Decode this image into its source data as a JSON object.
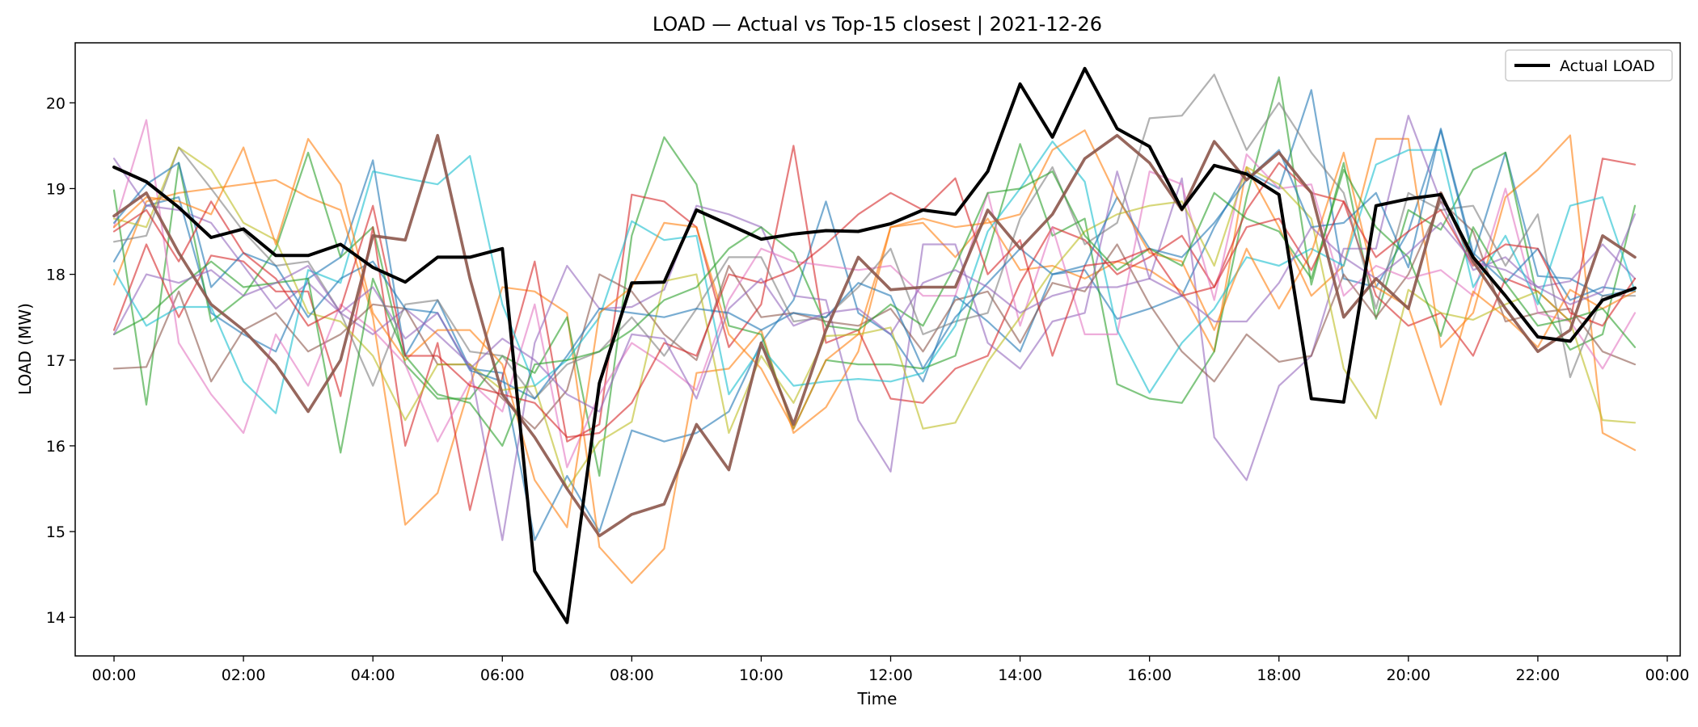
{
  "chart_data": {
    "type": "line",
    "title": "LOAD — Actual vs Top-15 closest | 2021-12-26",
    "xlabel": "Time",
    "ylabel": "LOAD (MW)",
    "xlim": [
      -0.6,
      24.2
    ],
    "ylim": [
      13.55,
      20.7
    ],
    "xticks": [
      0,
      2,
      4,
      6,
      8,
      10,
      12,
      14,
      16,
      18,
      20,
      22,
      24
    ],
    "xtick_labels": [
      "00:00",
      "02:00",
      "04:00",
      "06:00",
      "08:00",
      "10:00",
      "12:00",
      "14:00",
      "16:00",
      "18:00",
      "20:00",
      "22:00",
      "00:00"
    ],
    "yticks": [
      14,
      15,
      16,
      17,
      18,
      19,
      20
    ],
    "ytick_labels": [
      "14",
      "15",
      "16",
      "17",
      "18",
      "19",
      "20"
    ],
    "grid": false,
    "legend": {
      "position": "top-right",
      "entries": [
        "Actual LOAD"
      ]
    },
    "x": [
      0,
      0.5,
      1,
      1.5,
      2,
      2.5,
      3,
      3.5,
      4,
      4.5,
      5,
      5.5,
      6,
      6.5,
      7,
      7.5,
      8,
      8.5,
      9,
      9.5,
      10,
      10.5,
      11,
      11.5,
      12,
      12.5,
      13,
      13.5,
      14,
      14.5,
      15,
      15.5,
      16,
      16.5,
      17,
      17.5,
      18,
      18.5,
      19,
      19.5,
      20,
      20.5,
      21,
      21.5,
      22,
      22.5,
      23,
      23.5
    ],
    "actual": {
      "name": "Actual LOAD",
      "color": "#000000",
      "values": [
        19.25,
        19.08,
        18.78,
        18.43,
        18.53,
        18.22,
        18.22,
        18.35,
        18.08,
        17.91,
        18.2,
        18.2,
        18.3,
        14.54,
        13.94,
        16.73,
        17.9,
        17.91,
        18.75,
        18.58,
        18.41,
        18.47,
        18.51,
        18.5,
        18.59,
        18.75,
        18.7,
        19.2,
        20.22,
        19.6,
        20.4,
        19.7,
        19.49,
        18.76,
        19.27,
        19.17,
        18.93,
        16.55,
        16.51,
        18.8,
        18.88,
        18.93,
        18.2,
        17.75,
        17.27,
        17.22,
        17.7,
        17.84
      ]
    },
    "series": [
      {
        "color": "#1f77b4",
        "values": [
          18.15,
          18.8,
          18.9,
          17.55,
          17.3,
          17.1,
          17.95,
          18.2,
          19.33,
          17.05,
          17.7,
          16.9,
          16.85,
          14.9,
          15.65,
          15.0,
          16.18,
          16.05,
          16.15,
          16.4,
          17.2,
          17.7,
          18.85,
          17.55,
          17.3,
          16.75,
          17.75,
          17.45,
          17.1,
          18.0,
          18.05,
          17.48,
          17.6,
          17.75,
          18.55,
          19.2,
          19.0,
          20.15,
          17.95,
          17.85,
          18.5,
          19.68,
          18.2,
          19.42,
          17.98,
          17.95,
          17.75,
          17.82
        ]
      },
      {
        "color": "#ff7f0e",
        "values": [
          17.88,
          18.85,
          18.95,
          19.0,
          19.05,
          19.1,
          18.9,
          18.75,
          17.5,
          15.08,
          15.45,
          16.7,
          17.85,
          17.8,
          17.55,
          14.82,
          14.4,
          14.8,
          16.85,
          16.9,
          17.35,
          16.15,
          16.45,
          17.1,
          18.55,
          18.6,
          18.2,
          18.65,
          18.05,
          18.1,
          17.95,
          18.15,
          18.05,
          17.8,
          17.1,
          19.25,
          18.55,
          17.75,
          18.1,
          19.58,
          19.58,
          17.15,
          17.55,
          18.9,
          19.22,
          19.62,
          16.15,
          15.95
        ]
      },
      {
        "color": "#2ca02c",
        "values": [
          18.98,
          16.48,
          19.3,
          17.45,
          17.75,
          18.3,
          19.42,
          18.2,
          18.55,
          16.95,
          16.55,
          16.55,
          17.05,
          16.85,
          17.5,
          15.65,
          18.45,
          19.6,
          19.05,
          17.4,
          17.3,
          16.2,
          17.0,
          16.95,
          16.95,
          16.9,
          17.05,
          18.25,
          19.52,
          18.45,
          18.65,
          16.72,
          16.55,
          16.5,
          17.1,
          18.9,
          20.3,
          17.88,
          19.3,
          17.48,
          18.75,
          18.52,
          19.22,
          19.42,
          17.7,
          17.12,
          17.3,
          18.8
        ]
      },
      {
        "color": "#d62728",
        "values": [
          17.35,
          18.35,
          17.5,
          18.22,
          18.15,
          17.8,
          17.8,
          16.58,
          18.55,
          16.0,
          17.2,
          15.25,
          16.8,
          18.15,
          16.05,
          16.25,
          18.93,
          18.85,
          18.55,
          17.15,
          17.65,
          19.5,
          17.2,
          17.35,
          16.55,
          16.5,
          16.9,
          17.05,
          17.9,
          18.55,
          18.4,
          18.0,
          18.2,
          18.45,
          17.85,
          18.75,
          19.3,
          18.95,
          18.85,
          17.75,
          17.4,
          17.55,
          17.05,
          17.95,
          17.8,
          17.45,
          19.35,
          19.28
        ]
      },
      {
        "color": "#9467bd",
        "values": [
          19.35,
          18.8,
          18.75,
          18.6,
          18.1,
          17.6,
          17.9,
          17.55,
          17.3,
          17.6,
          17.3,
          16.95,
          14.9,
          17.2,
          18.1,
          17.6,
          17.62,
          17.82,
          18.8,
          18.7,
          18.55,
          17.75,
          17.7,
          16.3,
          15.7,
          18.35,
          18.35,
          17.2,
          16.9,
          17.45,
          17.55,
          19.2,
          17.95,
          19.12,
          16.1,
          15.6,
          16.7,
          17.05,
          18.3,
          18.3,
          19.85,
          18.85,
          18.05,
          18.2,
          17.85,
          17.92,
          18.35,
          17.95
        ]
      },
      {
        "color": "#8c564b",
        "values": [
          16.9,
          16.92,
          17.8,
          16.75,
          17.35,
          17.55,
          17.1,
          17.3,
          17.65,
          17.6,
          16.95,
          16.95,
          16.55,
          16.2,
          16.65,
          18.0,
          17.8,
          17.3,
          17.0,
          18.1,
          17.5,
          17.55,
          17.45,
          17.4,
          17.6,
          17.1,
          17.7,
          17.8,
          17.2,
          17.9,
          17.8,
          18.35,
          17.65,
          17.1,
          16.75,
          17.3,
          16.98,
          17.05,
          18.0,
          17.5,
          18.0,
          18.85,
          18.5,
          17.45,
          17.55,
          17.6,
          17.1,
          16.95
        ]
      },
      {
        "color": "#e377c2",
        "values": [
          18.55,
          19.8,
          17.2,
          16.6,
          16.15,
          17.3,
          16.7,
          17.65,
          17.35,
          16.95,
          16.05,
          16.75,
          16.4,
          17.65,
          15.75,
          16.6,
          17.2,
          16.95,
          16.65,
          17.7,
          18.3,
          18.15,
          18.1,
          18.05,
          18.1,
          17.75,
          17.75,
          18.95,
          17.4,
          18.55,
          17.3,
          17.3,
          19.2,
          19.05,
          17.7,
          19.4,
          19.0,
          19.05,
          17.75,
          18.1,
          17.95,
          18.05,
          17.75,
          19.0,
          17.55,
          17.45,
          16.9,
          17.55
        ]
      },
      {
        "color": "#7f7f7f",
        "values": [
          18.38,
          18.45,
          19.48,
          19.0,
          18.5,
          18.1,
          18.15,
          17.55,
          16.7,
          17.65,
          17.7,
          17.1,
          17.05,
          16.55,
          16.95,
          17.1,
          17.5,
          17.05,
          17.6,
          18.2,
          18.2,
          17.45,
          17.5,
          17.85,
          18.3,
          17.3,
          17.45,
          17.55,
          18.65,
          19.25,
          18.35,
          18.6,
          19.82,
          19.85,
          20.33,
          19.45,
          20.0,
          19.42,
          18.95,
          17.6,
          18.95,
          18.75,
          18.8,
          18.1,
          18.7,
          16.8,
          17.75,
          17.75
        ]
      },
      {
        "color": "#bcbd22",
        "values": [
          18.65,
          18.55,
          19.48,
          19.22,
          18.6,
          18.4,
          17.55,
          17.45,
          17.05,
          16.3,
          16.95,
          16.95,
          16.65,
          16.7,
          15.5,
          16.05,
          16.28,
          17.92,
          18.0,
          16.15,
          17.05,
          16.5,
          17.28,
          17.3,
          17.38,
          16.2,
          16.27,
          16.98,
          17.5,
          18.05,
          18.5,
          18.7,
          18.8,
          18.85,
          18.1,
          19.25,
          19.05,
          18.65,
          16.9,
          16.32,
          17.82,
          17.55,
          17.47,
          17.65,
          17.8,
          17.45,
          16.3,
          16.27
        ]
      },
      {
        "color": "#17becf",
        "values": [
          18.05,
          17.4,
          17.62,
          17.62,
          16.75,
          16.38,
          18.05,
          17.9,
          19.2,
          19.12,
          19.05,
          19.38,
          17.65,
          16.7,
          17.0,
          17.5,
          18.62,
          18.4,
          18.45,
          16.6,
          17.15,
          16.7,
          16.75,
          16.78,
          16.75,
          16.85,
          17.4,
          18.5,
          19.0,
          19.55,
          19.08,
          17.35,
          16.62,
          17.2,
          17.6,
          18.2,
          18.1,
          18.3,
          18.1,
          19.28,
          19.45,
          19.45,
          17.85,
          18.45,
          17.65,
          18.8,
          18.9,
          17.8
        ]
      },
      {
        "color": "#1f77b4",
        "values": [
          18.6,
          19.05,
          19.3,
          17.85,
          18.25,
          18.1,
          17.5,
          17.95,
          18.15,
          17.6,
          17.55,
          16.88,
          16.75,
          16.55,
          17.05,
          17.6,
          17.55,
          17.5,
          17.6,
          17.55,
          17.35,
          17.55,
          17.5,
          17.9,
          17.75,
          16.9,
          17.5,
          17.9,
          18.3,
          18.0,
          18.1,
          18.9,
          18.3,
          18.2,
          18.6,
          19.1,
          19.45,
          18.55,
          18.6,
          18.95,
          18.08,
          19.7,
          18.25,
          17.9,
          18.3,
          17.7,
          17.85,
          17.8
        ]
      },
      {
        "color": "#ff7f0e",
        "values": [
          18.55,
          18.9,
          18.85,
          18.7,
          19.48,
          18.35,
          19.58,
          19.05,
          17.55,
          17.0,
          17.35,
          17.35,
          16.95,
          15.6,
          15.05,
          17.55,
          17.85,
          18.6,
          18.55,
          17.3,
          16.9,
          16.2,
          17.0,
          17.3,
          18.55,
          18.65,
          18.55,
          18.6,
          18.7,
          19.45,
          19.68,
          18.9,
          18.25,
          18.15,
          17.35,
          18.3,
          17.6,
          18.25,
          19.42,
          17.85,
          17.62,
          16.48,
          17.8,
          17.5,
          17.15,
          17.82,
          17.6,
          17.8
        ]
      },
      {
        "color": "#2ca02c",
        "values": [
          17.3,
          17.5,
          17.85,
          18.15,
          17.85,
          17.9,
          17.95,
          15.92,
          17.95,
          17.05,
          16.6,
          16.5,
          16.0,
          16.95,
          17.0,
          17.1,
          17.35,
          17.7,
          17.85,
          18.3,
          18.55,
          18.25,
          17.4,
          17.35,
          17.65,
          17.4,
          18.1,
          18.95,
          19.0,
          19.2,
          18.45,
          18.05,
          18.3,
          18.1,
          18.95,
          18.65,
          18.5,
          17.95,
          19.22,
          18.55,
          18.2,
          17.28,
          18.55,
          17.9,
          17.4,
          17.48,
          17.6,
          17.15
        ]
      },
      {
        "color": "#d62728",
        "values": [
          18.5,
          18.75,
          18.15,
          18.85,
          18.25,
          17.95,
          17.4,
          17.6,
          18.8,
          17.05,
          17.05,
          16.7,
          16.6,
          16.5,
          16.1,
          16.15,
          16.5,
          17.2,
          17.05,
          18.0,
          17.9,
          18.05,
          18.35,
          18.7,
          18.95,
          18.75,
          19.12,
          18.0,
          18.4,
          17.05,
          18.1,
          18.15,
          18.3,
          17.75,
          17.85,
          18.55,
          18.65,
          18.05,
          18.85,
          18.2,
          18.5,
          18.75,
          18.1,
          18.35,
          18.3,
          17.55,
          17.4,
          17.95
        ]
      },
      {
        "color": "#9467bd",
        "values": [
          17.3,
          18.0,
          17.9,
          18.05,
          17.75,
          17.9,
          18.1,
          17.55,
          17.85,
          17.25,
          17.55,
          16.9,
          17.25,
          17.0,
          16.6,
          16.4,
          17.3,
          17.25,
          16.55,
          17.6,
          17.95,
          17.4,
          17.55,
          17.6,
          17.3,
          17.9,
          18.05,
          17.85,
          17.55,
          17.75,
          17.85,
          17.85,
          17.95,
          17.75,
          17.45,
          17.45,
          17.9,
          18.55,
          18.2,
          17.95,
          18.25,
          18.6,
          18.15,
          18.05,
          17.85,
          17.65,
          17.8,
          18.7
        ]
      },
      {
        "color": "#8c564b",
        "values": [
          18.68,
          18.95,
          18.25,
          17.65,
          17.35,
          16.95,
          16.4,
          17.0,
          18.45,
          18.4,
          19.62,
          17.95,
          16.6,
          16.1,
          15.5,
          14.95,
          15.2,
          15.32,
          16.25,
          15.72,
          17.2,
          16.25,
          17.35,
          18.2,
          17.82,
          17.85,
          17.85,
          18.75,
          18.3,
          18.7,
          19.35,
          19.62,
          19.3,
          18.75,
          19.55,
          19.1,
          19.42,
          18.95,
          17.5,
          17.95,
          17.6,
          18.95,
          18.15,
          17.6,
          17.1,
          17.35,
          18.45,
          18.2
        ],
        "bold": true
      }
    ]
  }
}
